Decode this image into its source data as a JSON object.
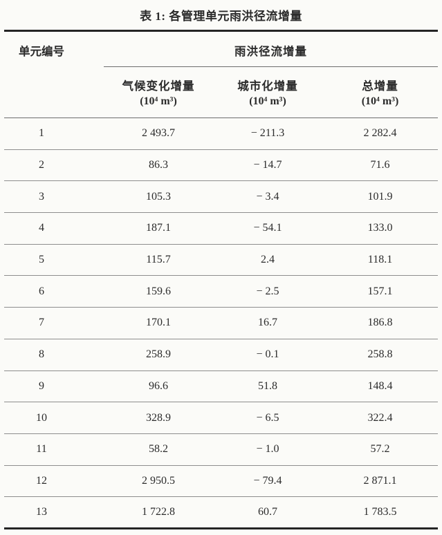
{
  "colors": {
    "background": "#fbfbf8",
    "text": "#2b2b2b",
    "rule_heavy": "#242424",
    "rule_header": "#6d6d6d",
    "rule_row": "#8d8d8d"
  },
  "table": {
    "title": "表 1: 各管理单元雨洪径流增量",
    "corner_header": "单元编号",
    "group_header": "雨洪径流增量",
    "columns": [
      {
        "label": "气候变化增量",
        "unit": "(10⁴ m³)"
      },
      {
        "label": "城市化增量",
        "unit": "(10⁴ m³)"
      },
      {
        "label": "总增量",
        "unit": "(10⁴ m³)"
      }
    ],
    "rows": [
      {
        "unit_id": "1",
        "climate": "2 493.7",
        "urban": "− 211.3",
        "total": "2 282.4"
      },
      {
        "unit_id": "2",
        "climate": "86.3",
        "urban": "− 14.7",
        "total": "71.6"
      },
      {
        "unit_id": "3",
        "climate": "105.3",
        "urban": "− 3.4",
        "total": "101.9"
      },
      {
        "unit_id": "4",
        "climate": "187.1",
        "urban": "− 54.1",
        "total": "133.0"
      },
      {
        "unit_id": "5",
        "climate": "115.7",
        "urban": "2.4",
        "total": "118.1"
      },
      {
        "unit_id": "6",
        "climate": "159.6",
        "urban": "− 2.5",
        "total": "157.1"
      },
      {
        "unit_id": "7",
        "climate": "170.1",
        "urban": "16.7",
        "total": "186.8"
      },
      {
        "unit_id": "8",
        "climate": "258.9",
        "urban": "− 0.1",
        "total": "258.8"
      },
      {
        "unit_id": "9",
        "climate": "96.6",
        "urban": "51.8",
        "total": "148.4"
      },
      {
        "unit_id": "10",
        "climate": "328.9",
        "urban": "− 6.5",
        "total": "322.4"
      },
      {
        "unit_id": "11",
        "climate": "58.2",
        "urban": "− 1.0",
        "total": "57.2"
      },
      {
        "unit_id": "12",
        "climate": "2 950.5",
        "urban": "− 79.4",
        "total": "2 871.1"
      },
      {
        "unit_id": "13",
        "climate": "1 722.8",
        "urban": "60.7",
        "total": "1 783.5"
      }
    ]
  }
}
